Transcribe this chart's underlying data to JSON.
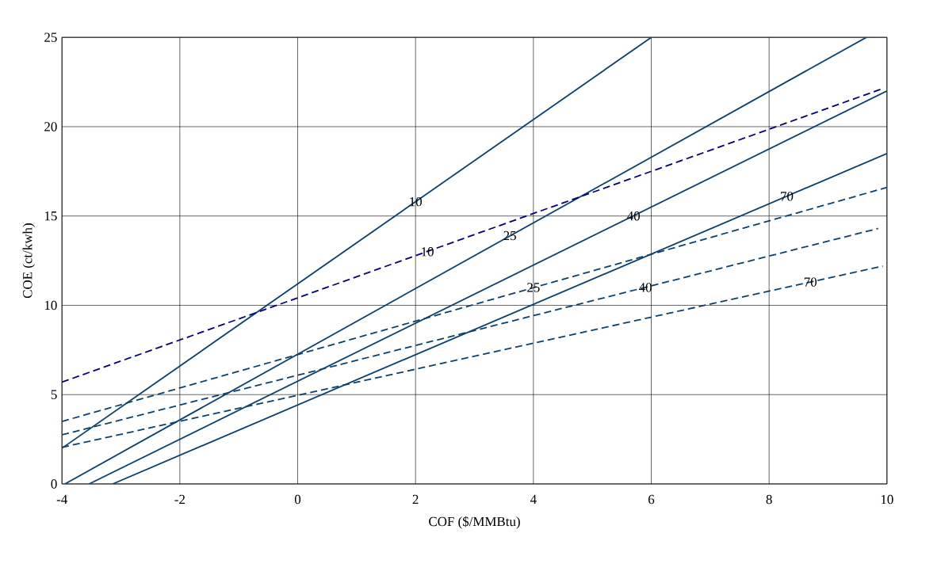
{
  "chart_data": {
    "type": "line",
    "xlabel": "COF ($/MMBtu)",
    "ylabel": "COE (ct/kwh)",
    "xlim": [
      -4,
      10
    ],
    "ylim": [
      0,
      25
    ],
    "xticks": [
      -4,
      -2,
      0,
      2,
      4,
      6,
      8,
      10
    ],
    "yticks": [
      0,
      5,
      10,
      15,
      20,
      25
    ],
    "grid": true,
    "marker": "none",
    "series": [
      {
        "color": "#0b4170",
        "line_style": "solid",
        "x": [
          -4,
          6
        ],
        "values": [
          2.0,
          25
        ]
      },
      {
        "color": "#0b4170",
        "line_style": "solid",
        "x": [
          -3.95,
          9.65
        ],
        "values": [
          0,
          25
        ]
      },
      {
        "color": "#0b4170",
        "line_style": "solid",
        "x": [
          -3.54,
          10
        ],
        "values": [
          0,
          22
        ]
      },
      {
        "color": "#0b4170",
        "line_style": "solid",
        "x": [
          -3.14,
          10
        ],
        "values": [
          0,
          18.5
        ]
      },
      {
        "color": "#000080",
        "line_style": "dashed",
        "x": [
          -4,
          9.9
        ],
        "values": [
          5.7,
          22.1
        ]
      },
      {
        "color": "#0b4170",
        "line_style": "dashed",
        "x": [
          -4,
          10
        ],
        "values": [
          3.5,
          16.6
        ]
      },
      {
        "color": "#0b4170",
        "line_style": "dashed",
        "x": [
          -4,
          9.85
        ],
        "values": [
          2.75,
          14.3
        ]
      },
      {
        "color": "#0b4170",
        "line_style": "dashed",
        "x": [
          -4,
          9.93
        ],
        "values": [
          2.05,
          12.2
        ]
      }
    ],
    "annotations": [
      {
        "text": "10",
        "x": 2,
        "y": 15.8
      },
      {
        "text": "10",
        "x": 2.2,
        "y": 13.0
      },
      {
        "text": "25",
        "x": 3.6,
        "y": 13.9
      },
      {
        "text": "40",
        "x": 5.7,
        "y": 15.0
      },
      {
        "text": "70",
        "x": 8.3,
        "y": 16.1
      },
      {
        "text": "25",
        "x": 4.0,
        "y": 11.0
      },
      {
        "text": "40",
        "x": 5.9,
        "y": 11.0
      },
      {
        "text": "70",
        "x": 8.7,
        "y": 11.3
      }
    ]
  }
}
